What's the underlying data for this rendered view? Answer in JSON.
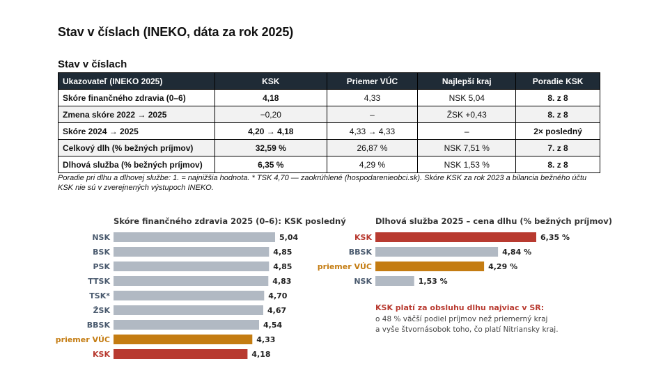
{
  "page_title": "Stav v číslach (INEKO, dáta za rok 2025)",
  "table_title": "Stav v číslach",
  "table": {
    "headers": [
      "Ukazovateľ (INEKO 2025)",
      "KSK",
      "Priemer VÚC",
      "Najlepší kraj",
      "Poradie KSK"
    ],
    "rows": [
      [
        "Skóre finančného zdravia (0–6)",
        "4,18",
        "4,33",
        "NSK 5,04",
        "8. z 8"
      ],
      [
        "Zmena skóre 2022 → 2025",
        "−0,20",
        "–",
        "ŽSK +0,43",
        "8. z 8"
      ],
      [
        "Skóre 2024 → 2025",
        "4,20 → 4,18",
        "4,33 → 4,33",
        "–",
        "2× posledný"
      ],
      [
        "Celkový dlh (% bežných príjmov)",
        "32,59 %",
        "26,87 %",
        "NSK 7,51 %",
        "7. z 8"
      ],
      [
        "Dlhová služba (% bežných príjmov)",
        "6,35 %",
        "4,29 %",
        "NSK 1,53 %",
        "8. z 8"
      ]
    ]
  },
  "footnote": "Poradie pri dlhu a dlhovej službe: 1. = najnižšia hodnota. * TSK 4,70 — zaokrúhlené (hospodarenieobci.sk). Skóre KSK za rok 2023 a bilancia bežného účtu KSK nie sú v zverejnených výstupoch INEKO.",
  "colors": {
    "bar_default": "#b1b9c3",
    "bar_ksk": "#b83a30",
    "bar_average": "#c47c12",
    "label_default": "#4a5a6e",
    "header_bg": "#1f2b36"
  },
  "chart_data": [
    {
      "type": "bar",
      "orientation": "horizontal",
      "title": "Skóre finančného zdravia 2025 (0–6): KSK posledný",
      "categories": [
        "NSK",
        "BSK",
        "PSK",
        "TTSK",
        "TSK*",
        "ŽSK",
        "BBSK",
        "priemer VÚC",
        "KSK"
      ],
      "values": [
        5.04,
        4.85,
        4.85,
        4.83,
        4.7,
        4.67,
        4.54,
        4.33,
        4.18
      ],
      "value_labels": [
        "5,04",
        "4,85",
        "4,85",
        "4,83",
        "4,70",
        "4,67",
        "4,54",
        "4,33",
        "4,18"
      ],
      "highlight": {
        "KSK": "ksk",
        "priemer VÚC": "average"
      },
      "xlim": [
        0,
        5.04
      ]
    },
    {
      "type": "bar",
      "orientation": "horizontal",
      "title": "Dlhová služba 2025 – cena dlhu (% bežných príjmov)",
      "categories": [
        "KSK",
        "BBSK",
        "priemer VÚC",
        "NSK"
      ],
      "values": [
        6.35,
        4.84,
        4.29,
        1.53
      ],
      "value_labels": [
        "6,35 %",
        "4,84 %",
        "4,29 %",
        "1,53 %"
      ],
      "highlight": {
        "KSK": "ksk",
        "priemer VÚC": "average"
      },
      "xlim": [
        0,
        6.35
      ],
      "note": {
        "title": "KSK platí za obsluhu dlhu najviac v SR:",
        "lines": [
          "o 48 % väčší podiel príjmov než priemerný kraj",
          "a vyše štvornásobok toho, čo platí Nitriansky kraj."
        ]
      }
    }
  ]
}
